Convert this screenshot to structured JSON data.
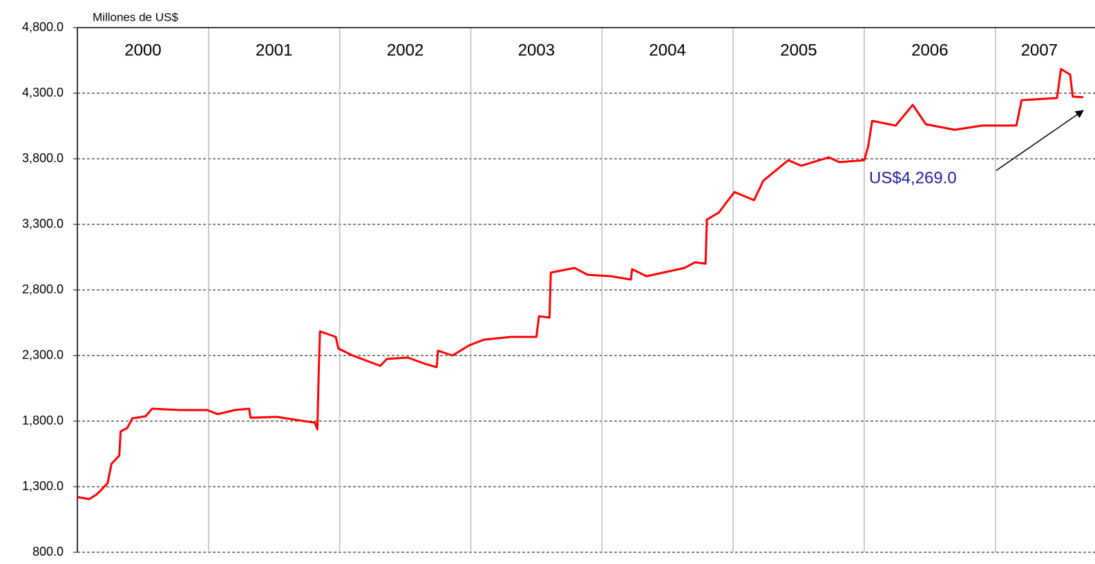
{
  "chart_data": {
    "type": "line",
    "y_label": "Millones de US$",
    "annotation": "US$4,269.0",
    "xlim": [
      2000,
      2007.67
    ],
    "xticks": [
      2000,
      2001,
      2002,
      2003,
      2004,
      2005,
      2006,
      2007
    ],
    "ylim": [
      800,
      4800
    ],
    "yticks": [
      {
        "value": 800,
        "label": "800.0"
      },
      {
        "value": 1300,
        "label": "1,300.0"
      },
      {
        "value": 1800,
        "label": "1,800.0"
      },
      {
        "value": 2300,
        "label": "2,300.0"
      },
      {
        "value": 2800,
        "label": "2,800.0"
      },
      {
        "value": 3300,
        "label": "3,300.0"
      },
      {
        "value": 3800,
        "label": "3,800.0"
      },
      {
        "value": 4300,
        "label": "4,300.0"
      },
      {
        "value": 4800,
        "label": "4,800.0"
      }
    ],
    "grid": true,
    "x": [
      2000.0,
      2000.09,
      2000.15,
      2000.23,
      2000.26,
      2000.32,
      2000.33,
      2000.38,
      2000.42,
      2000.52,
      2000.57,
      2000.78,
      2000.99,
      2001.07,
      2001.2,
      2001.31,
      2001.32,
      2001.52,
      2001.73,
      2001.81,
      2001.83,
      2001.84,
      2001.85,
      2001.97,
      2001.99,
      2002.1,
      2002.31,
      2002.36,
      2002.52,
      2002.65,
      2002.74,
      2002.75,
      2002.86,
      2002.99,
      2003.1,
      2003.31,
      2003.5,
      2003.52,
      2003.6,
      2003.61,
      2003.79,
      2003.89,
      2004.07,
      2004.22,
      2004.23,
      2004.34,
      2004.63,
      2004.71,
      2004.79,
      2004.8,
      2004.89,
      2005.01,
      2005.16,
      2005.23,
      2005.42,
      2005.52,
      2005.73,
      2005.81,
      2006.0,
      2006.03,
      2006.06,
      2006.24,
      2006.37,
      2006.47,
      2006.69,
      2006.9,
      2007.16,
      2007.2,
      2007.47,
      2007.5,
      2007.57,
      2007.59,
      2007.67
    ],
    "series": [
      {
        "color": "#ff0000",
        "values": [
          1221,
          1205,
          1243,
          1326,
          1474,
          1537,
          1721,
          1747,
          1821,
          1837,
          1895,
          1884,
          1884,
          1853,
          1884,
          1895,
          1826,
          1832,
          1800,
          1789,
          1737,
          2168,
          2484,
          2442,
          2353,
          2300,
          2221,
          2274,
          2284,
          2237,
          2211,
          2337,
          2300,
          2379,
          2421,
          2442,
          2442,
          2600,
          2589,
          2932,
          2968,
          2916,
          2905,
          2879,
          2958,
          2905,
          2968,
          3011,
          3000,
          3337,
          3389,
          3547,
          3484,
          3632,
          3789,
          3747,
          3811,
          3774,
          3789,
          3895,
          4089,
          4053,
          4211,
          4063,
          4021,
          4053,
          4053,
          4247,
          4263,
          4484,
          4442,
          4274,
          4269
        ]
      }
    ]
  }
}
